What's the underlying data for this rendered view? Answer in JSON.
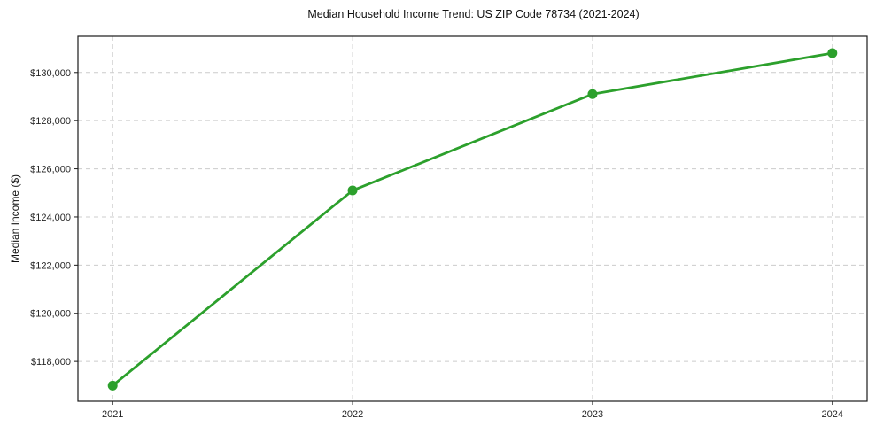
{
  "chart_data": {
    "type": "line",
    "title": "Median Household Income Trend: US ZIP Code 78734 (2021-2024)",
    "xlabel": "",
    "ylabel": "Median Income ($)",
    "categories": [
      "2021",
      "2022",
      "2023",
      "2024"
    ],
    "series": [
      {
        "name": "Median Household Income",
        "values": [
          117000,
          125100,
          129100,
          130800
        ],
        "color": "#2ca02c"
      }
    ],
    "ylim": [
      116350,
      131500
    ],
    "yticks": [
      118000,
      120000,
      122000,
      124000,
      126000,
      128000,
      130000
    ],
    "ytick_labels": [
      "$118,000",
      "$120,000",
      "$122,000",
      "$124,000",
      "$126,000",
      "$128,000",
      "$130,000"
    ],
    "grid": true,
    "grid_style": "dashed",
    "legend": false,
    "marker": "circle",
    "marker_size": 11,
    "line_width": 2.8
  },
  "style": {
    "accent_green": "#2ca02c",
    "grid_color": "#cccccc",
    "spine_color": "#1a1a1a",
    "tick_label_color": "#262626",
    "background": "#ffffff"
  }
}
